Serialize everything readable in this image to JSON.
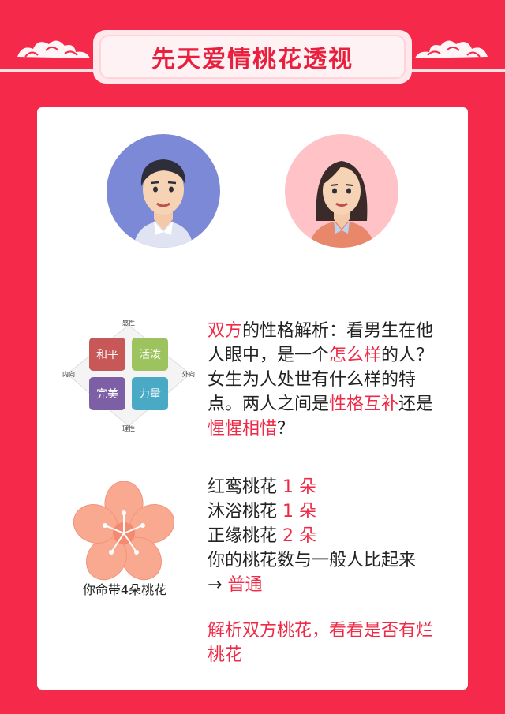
{
  "header": {
    "title": "先天爱情桃花透视"
  },
  "personality": {
    "quadrant_labels": {
      "top": "感性",
      "bottom": "理性",
      "left": "内向",
      "right": "外向"
    },
    "quadrants": [
      {
        "label": "和平",
        "color": "#c85757"
      },
      {
        "label": "活泼",
        "color": "#9cc35d"
      },
      {
        "label": "完美",
        "color": "#7d5fa6"
      },
      {
        "label": "力量",
        "color": "#4aa9c5"
      }
    ],
    "text": {
      "p1": "双方",
      "p2": "的性格解析：看男生在他人眼中，是一个",
      "p3": "怎么样",
      "p4": "的人？女生为人处世有什么样的特点。两人之间是",
      "p5": "性格互补",
      "p6": "还是",
      "p7": "惺惺相惜",
      "p8": "？"
    }
  },
  "flower": {
    "caption": "你命带4朵桃花",
    "lines": [
      {
        "label": "红鸾桃花",
        "count": "1 朵"
      },
      {
        "label": "沐浴桃花",
        "count": "1 朵"
      },
      {
        "label": "正缘桃花",
        "count": "2 朵"
      }
    ],
    "compare_text": "你的桃花数与一般人比起来",
    "arrow": "→",
    "compare_result": "普通"
  },
  "cta": {
    "text": "解析双方桃花，看看是否有烂桃花"
  },
  "colors": {
    "background": "#f5294a",
    "accent": "#ee2b47"
  }
}
